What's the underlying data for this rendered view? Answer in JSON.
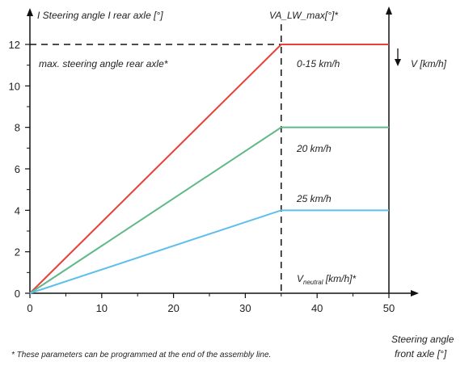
{
  "chart_data": {
    "type": "line",
    "ylabel": "I Steering angle I  rear axle [°]",
    "xlabel_line1": "Steering angle",
    "xlabel_line2": "front axle [°]",
    "xlim": [
      0,
      50
    ],
    "ylim": [
      0,
      12
    ],
    "xticks": [
      0,
      10,
      20,
      30,
      40,
      50
    ],
    "yticks": [
      0,
      2,
      4,
      6,
      8,
      10,
      12
    ],
    "series": [
      {
        "label": "0-15 km/h",
        "color": "#e8403a",
        "x": [
          0,
          35,
          50
        ],
        "y": [
          0,
          12,
          12
        ]
      },
      {
        "label": "20 km/h",
        "color": "#5fb98a",
        "x": [
          0,
          35,
          50
        ],
        "y": [
          0,
          8,
          8
        ]
      },
      {
        "label": "25 km/h",
        "color": "#5cc0ea",
        "x": [
          0,
          35,
          50
        ],
        "y": [
          0,
          4,
          4
        ]
      }
    ],
    "annotations": {
      "vline_label": "VA_LW_max[°]*",
      "vline_x": 35,
      "hline_y": 12,
      "hline_label": "max. steering angle rear axle*",
      "v_axis_label": "V [km/h]",
      "v_neutral_main": "V",
      "v_neutral_sub": "neutral",
      "v_neutral_rest": " [km/h]*"
    },
    "footnote": "* These parameters can be programmed at the end of the assembly line."
  }
}
